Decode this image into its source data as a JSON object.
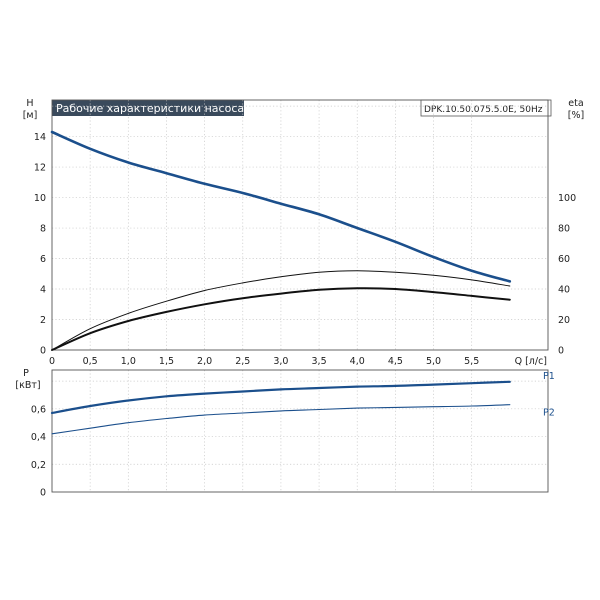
{
  "header": {
    "title": "Рабочие характеристики насоса",
    "model": "DPK.10.50.075.5.0E, 50Hz"
  },
  "colors": {
    "blue": "#1b4f8c",
    "black": "#111111",
    "title_bg": "#3a4a5c",
    "grid": "#c8c8c8"
  },
  "chart_data": [
    {
      "type": "line",
      "panel": "head_efficiency",
      "title": "Рабочие характеристики насоса",
      "xlabel": "Q [л/с]",
      "ylabel": "H\n[м]",
      "y2label": "eta\n[%]",
      "xlim": [
        0,
        6.5
      ],
      "ylim": [
        0,
        16.4
      ],
      "y2lim": [
        0,
        164
      ],
      "xticks": [
        "0",
        "0,5",
        "1,0",
        "1,5",
        "2,0",
        "2,5",
        "3,0",
        "3,5",
        "4,0",
        "4,5",
        "5,0",
        "5,5"
      ],
      "xtick_values": [
        0,
        0.5,
        1.0,
        1.5,
        2.0,
        2.5,
        3.0,
        3.5,
        4.0,
        4.5,
        5.0,
        5.5
      ],
      "yticks": [
        "0",
        "2",
        "4",
        "6",
        "8",
        "10",
        "12",
        "14"
      ],
      "y2ticks": [
        "0",
        "20",
        "40",
        "60",
        "80",
        "100"
      ],
      "grid": true,
      "series": [
        {
          "key": "H",
          "axis": "left",
          "color": "#1b4f8c",
          "points": [
            [
              0,
              14.3
            ],
            [
              0.5,
              13.2
            ],
            [
              1.0,
              12.3
            ],
            [
              1.5,
              11.6
            ],
            [
              2.0,
              10.9
            ],
            [
              2.5,
              10.3
            ],
            [
              3.0,
              9.6
            ],
            [
              3.5,
              8.9
            ],
            [
              4.0,
              8.0
            ],
            [
              4.5,
              7.1
            ],
            [
              5.0,
              6.1
            ],
            [
              5.5,
              5.2
            ],
            [
              6.0,
              4.5
            ]
          ]
        },
        {
          "key": "eta_upper",
          "axis": "right",
          "color": "#111111",
          "points": [
            [
              0,
              0
            ],
            [
              0.5,
              14
            ],
            [
              1.0,
              24
            ],
            [
              1.5,
              32
            ],
            [
              2.0,
              39
            ],
            [
              2.5,
              44
            ],
            [
              3.0,
              48
            ],
            [
              3.5,
              51
            ],
            [
              4.0,
              52
            ],
            [
              4.5,
              51
            ],
            [
              5.0,
              49
            ],
            [
              5.5,
              46
            ],
            [
              6.0,
              42
            ]
          ]
        },
        {
          "key": "eta",
          "axis": "right",
          "color": "#111111",
          "points": [
            [
              0,
              0
            ],
            [
              0.5,
              11
            ],
            [
              1.0,
              19
            ],
            [
              1.5,
              25
            ],
            [
              2.0,
              30
            ],
            [
              2.5,
              34
            ],
            [
              3.0,
              37
            ],
            [
              3.5,
              39.5
            ],
            [
              4.0,
              40.5
            ],
            [
              4.5,
              40
            ],
            [
              5.0,
              38
            ],
            [
              5.5,
              35.5
            ],
            [
              6.0,
              33
            ]
          ]
        }
      ]
    },
    {
      "type": "line",
      "panel": "power",
      "xlabel": "",
      "ylabel": "P\n[кВт]",
      "xlim": [
        0,
        6.5
      ],
      "ylim": [
        0,
        0.88
      ],
      "yticks": [
        "0",
        "0,2",
        "0,4",
        "0,6"
      ],
      "ytick_values": [
        0,
        0.2,
        0.4,
        0.6
      ],
      "grid": true,
      "series": [
        {
          "name": "P1",
          "color": "#1b4f8c",
          "points": [
            [
              0,
              0.57
            ],
            [
              0.5,
              0.62
            ],
            [
              1.0,
              0.66
            ],
            [
              1.5,
              0.69
            ],
            [
              2.0,
              0.71
            ],
            [
              2.5,
              0.725
            ],
            [
              3.0,
              0.74
            ],
            [
              3.5,
              0.75
            ],
            [
              4.0,
              0.76
            ],
            [
              4.5,
              0.765
            ],
            [
              5.0,
              0.775
            ],
            [
              5.5,
              0.785
            ],
            [
              6.0,
              0.795
            ]
          ]
        },
        {
          "name": "P2",
          "color": "#1b4f8c",
          "points": [
            [
              0,
              0.42
            ],
            [
              0.5,
              0.46
            ],
            [
              1.0,
              0.5
            ],
            [
              1.5,
              0.53
            ],
            [
              2.0,
              0.555
            ],
            [
              2.5,
              0.57
            ],
            [
              3.0,
              0.585
            ],
            [
              3.5,
              0.595
            ],
            [
              4.0,
              0.605
            ],
            [
              4.5,
              0.61
            ],
            [
              5.0,
              0.615
            ],
            [
              5.5,
              0.62
            ],
            [
              6.0,
              0.63
            ]
          ]
        }
      ]
    }
  ]
}
